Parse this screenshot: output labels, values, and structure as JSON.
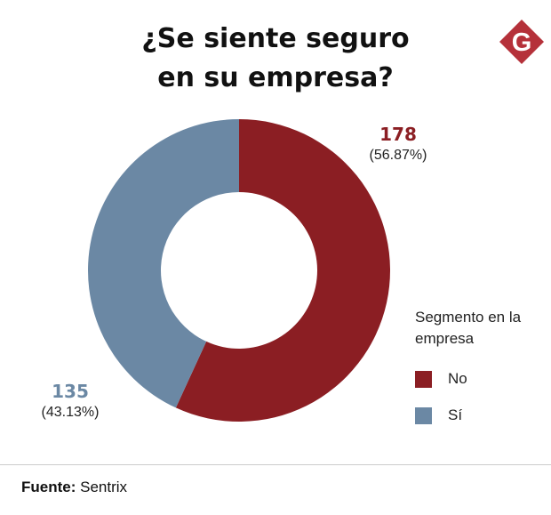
{
  "header": {
    "title_line1": "¿Se siente seguro",
    "title_line2": "en su empresa?",
    "logo_letter": "G"
  },
  "colors": {
    "no": "#8B1E23",
    "si": "#6B88A4",
    "logo": "#B5313A"
  },
  "chart_data": {
    "type": "pie",
    "variant": "donut",
    "categories": [
      "No",
      "Sí"
    ],
    "values": [
      178,
      135
    ],
    "percent_labels": [
      "(56.87%)",
      "(43.13%)"
    ],
    "value_labels": [
      "178",
      "135"
    ],
    "legend": {
      "title": "Segmento en la empresa",
      "entries": [
        "No",
        "Sí"
      ],
      "position": "right"
    },
    "start_angle": "top, clockwise"
  },
  "footer": {
    "source_label": "Fuente:",
    "source_value": "Sentrix"
  }
}
